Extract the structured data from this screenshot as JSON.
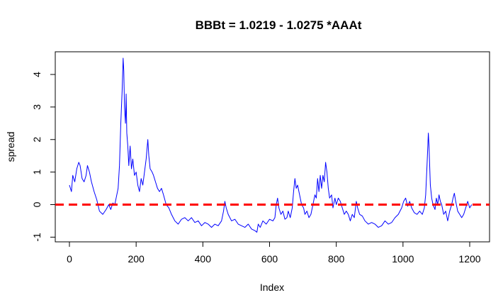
{
  "chart_data": {
    "type": "line",
    "title": "BBBt = 1.0219 - 1.0275 *AAAt",
    "xlabel": "Index",
    "ylabel": "spread",
    "xlim": [
      0,
      1210
    ],
    "ylim": [
      -1,
      4.6
    ],
    "x_ticks": [
      0,
      200,
      400,
      600,
      800,
      1000,
      1200
    ],
    "y_ticks": [
      -1,
      0,
      1,
      2,
      3,
      4
    ],
    "x_tick_labels": [
      "0",
      "200",
      "400",
      "600",
      "800",
      "1000",
      "1200"
    ],
    "y_tick_labels": [
      "-1",
      "0",
      "1",
      "2",
      "3",
      "4"
    ],
    "grid": false,
    "series": [
      {
        "color": "#0000ff",
        "style": "solid",
        "points": [
          [
            0,
            0.6
          ],
          [
            6,
            0.4
          ],
          [
            10,
            0.9
          ],
          [
            16,
            0.7
          ],
          [
            22,
            1.1
          ],
          [
            28,
            1.3
          ],
          [
            32,
            1.2
          ],
          [
            38,
            0.8
          ],
          [
            44,
            0.7
          ],
          [
            50,
            0.9
          ],
          [
            54,
            1.2
          ],
          [
            60,
            1.0
          ],
          [
            66,
            0.7
          ],
          [
            74,
            0.4
          ],
          [
            82,
            0.15
          ],
          [
            90,
            -0.2
          ],
          [
            100,
            -0.3
          ],
          [
            110,
            -0.15
          ],
          [
            118,
            0.0
          ],
          [
            124,
            -0.15
          ],
          [
            130,
            0.05
          ],
          [
            136,
            0.0
          ],
          [
            140,
            0.2
          ],
          [
            146,
            0.5
          ],
          [
            150,
            1.2
          ],
          [
            154,
            2.5
          ],
          [
            158,
            3.5
          ],
          [
            161,
            4.5
          ],
          [
            163,
            4.1
          ],
          [
            165,
            3.0
          ],
          [
            168,
            2.5
          ],
          [
            170,
            3.4
          ],
          [
            172,
            2.2
          ],
          [
            175,
            1.8
          ],
          [
            178,
            1.2
          ],
          [
            182,
            1.8
          ],
          [
            186,
            1.1
          ],
          [
            190,
            1.4
          ],
          [
            195,
            0.9
          ],
          [
            200,
            1.0
          ],
          [
            205,
            0.6
          ],
          [
            210,
            0.4
          ],
          [
            215,
            0.8
          ],
          [
            220,
            0.6
          ],
          [
            225,
            1.0
          ],
          [
            230,
            1.4
          ],
          [
            235,
            2.0
          ],
          [
            238,
            1.5
          ],
          [
            242,
            1.1
          ],
          [
            248,
            1.0
          ],
          [
            252,
            0.9
          ],
          [
            258,
            0.7
          ],
          [
            264,
            0.5
          ],
          [
            270,
            0.4
          ],
          [
            276,
            0.5
          ],
          [
            282,
            0.3
          ],
          [
            290,
            0.0
          ],
          [
            298,
            -0.1
          ],
          [
            306,
            -0.3
          ],
          [
            316,
            -0.5
          ],
          [
            326,
            -0.6
          ],
          [
            336,
            -0.45
          ],
          [
            346,
            -0.4
          ],
          [
            356,
            -0.5
          ],
          [
            366,
            -0.4
          ],
          [
            376,
            -0.55
          ],
          [
            386,
            -0.5
          ],
          [
            396,
            -0.65
          ],
          [
            406,
            -0.55
          ],
          [
            416,
            -0.6
          ],
          [
            426,
            -0.7
          ],
          [
            436,
            -0.6
          ],
          [
            446,
            -0.65
          ],
          [
            456,
            -0.5
          ],
          [
            462,
            -0.2
          ],
          [
            466,
            0.1
          ],
          [
            470,
            -0.1
          ],
          [
            476,
            -0.3
          ],
          [
            486,
            -0.5
          ],
          [
            496,
            -0.45
          ],
          [
            506,
            -0.6
          ],
          [
            516,
            -0.65
          ],
          [
            526,
            -0.7
          ],
          [
            536,
            -0.6
          ],
          [
            546,
            -0.75
          ],
          [
            556,
            -0.8
          ],
          [
            562,
            -0.85
          ],
          [
            566,
            -0.6
          ],
          [
            572,
            -0.7
          ],
          [
            580,
            -0.5
          ],
          [
            590,
            -0.6
          ],
          [
            600,
            -0.45
          ],
          [
            610,
            -0.5
          ],
          [
            616,
            -0.4
          ],
          [
            620,
            0.0
          ],
          [
            624,
            0.2
          ],
          [
            628,
            -0.1
          ],
          [
            634,
            -0.3
          ],
          [
            640,
            -0.2
          ],
          [
            646,
            -0.45
          ],
          [
            652,
            -0.4
          ],
          [
            656,
            -0.2
          ],
          [
            662,
            -0.4
          ],
          [
            668,
            -0.1
          ],
          [
            672,
            0.4
          ],
          [
            676,
            0.8
          ],
          [
            680,
            0.5
          ],
          [
            684,
            0.6
          ],
          [
            690,
            0.3
          ],
          [
            696,
            0.0
          ],
          [
            702,
            -0.1
          ],
          [
            706,
            -0.3
          ],
          [
            712,
            -0.2
          ],
          [
            718,
            -0.4
          ],
          [
            724,
            -0.3
          ],
          [
            730,
            0.0
          ],
          [
            736,
            0.3
          ],
          [
            740,
            0.2
          ],
          [
            744,
            0.8
          ],
          [
            748,
            0.4
          ],
          [
            752,
            0.9
          ],
          [
            756,
            0.5
          ],
          [
            760,
            0.9
          ],
          [
            764,
            0.7
          ],
          [
            768,
            1.3
          ],
          [
            772,
            1.0
          ],
          [
            776,
            0.5
          ],
          [
            780,
            0.2
          ],
          [
            786,
            0.3
          ],
          [
            790,
            -0.1
          ],
          [
            796,
            0.2
          ],
          [
            800,
            0.0
          ],
          [
            806,
            0.2
          ],
          [
            812,
            0.1
          ],
          [
            818,
            -0.1
          ],
          [
            824,
            -0.3
          ],
          [
            830,
            -0.2
          ],
          [
            836,
            -0.3
          ],
          [
            842,
            -0.5
          ],
          [
            848,
            -0.3
          ],
          [
            854,
            -0.4
          ],
          [
            860,
            0.1
          ],
          [
            864,
            -0.1
          ],
          [
            870,
            -0.3
          ],
          [
            878,
            -0.35
          ],
          [
            886,
            -0.5
          ],
          [
            896,
            -0.6
          ],
          [
            906,
            -0.55
          ],
          [
            916,
            -0.6
          ],
          [
            926,
            -0.7
          ],
          [
            936,
            -0.65
          ],
          [
            946,
            -0.5
          ],
          [
            956,
            -0.6
          ],
          [
            966,
            -0.55
          ],
          [
            976,
            -0.4
          ],
          [
            986,
            -0.3
          ],
          [
            996,
            -0.1
          ],
          [
            1002,
            0.1
          ],
          [
            1008,
            0.2
          ],
          [
            1014,
            -0.05
          ],
          [
            1020,
            0.1
          ],
          [
            1026,
            -0.1
          ],
          [
            1034,
            -0.25
          ],
          [
            1042,
            -0.3
          ],
          [
            1050,
            -0.2
          ],
          [
            1058,
            -0.3
          ],
          [
            1064,
            -0.1
          ],
          [
            1068,
            0.3
          ],
          [
            1072,
            1.2
          ],
          [
            1076,
            2.2
          ],
          [
            1078,
            1.8
          ],
          [
            1082,
            0.6
          ],
          [
            1086,
            0.2
          ],
          [
            1090,
            0.0
          ],
          [
            1096,
            -0.15
          ],
          [
            1100,
            0.2
          ],
          [
            1104,
            0.0
          ],
          [
            1108,
            0.3
          ],
          [
            1112,
            0.1
          ],
          [
            1116,
            0.0
          ],
          [
            1122,
            -0.3
          ],
          [
            1128,
            -0.2
          ],
          [
            1134,
            -0.5
          ],
          [
            1140,
            -0.2
          ],
          [
            1146,
            0.0
          ],
          [
            1150,
            0.2
          ],
          [
            1154,
            0.35
          ],
          [
            1158,
            0.1
          ],
          [
            1164,
            -0.2
          ],
          [
            1170,
            -0.3
          ],
          [
            1176,
            -0.4
          ],
          [
            1182,
            -0.3
          ],
          [
            1188,
            -0.1
          ],
          [
            1194,
            0.1
          ],
          [
            1200,
            -0.1
          ],
          [
            1206,
            0.0
          ]
        ]
      },
      {
        "type": "hline",
        "y": 0,
        "color": "#ff0000",
        "style": "dashed"
      }
    ]
  }
}
